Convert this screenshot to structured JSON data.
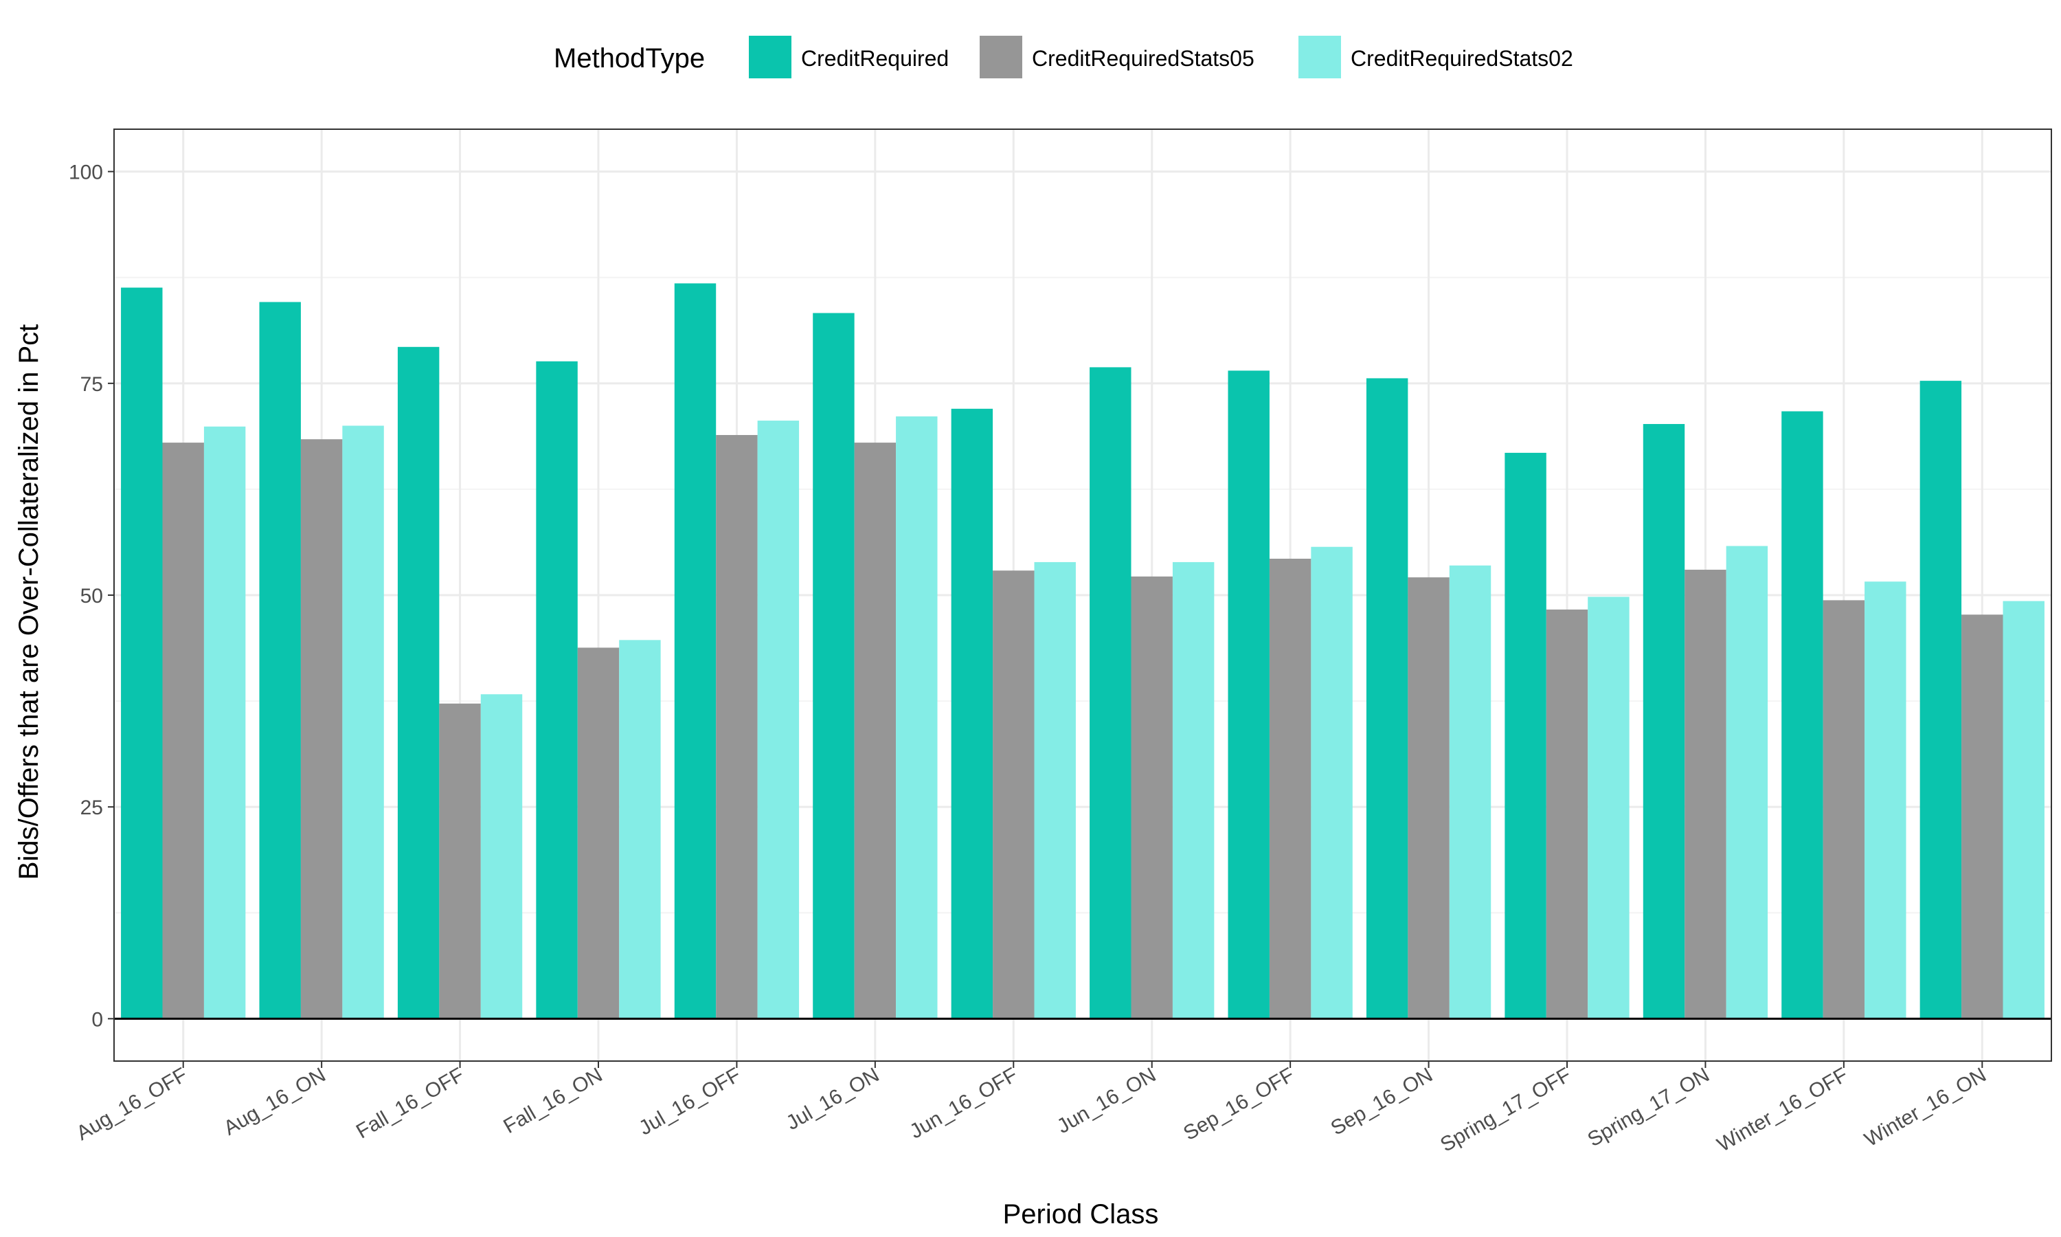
{
  "chart_data": {
    "type": "bar",
    "xlabel": "Period Class",
    "ylabel": "Bids/Offers that are Over-Collateralized in Pct",
    "ylim": [
      -5,
      105
    ],
    "yticks": [
      0,
      25,
      50,
      75,
      100
    ],
    "grid": true,
    "legend": {
      "title": "MethodType",
      "placement": "top"
    },
    "categories": [
      "Aug_16_OFF",
      "Aug_16_ON",
      "Fall_16_OFF",
      "Fall_16_ON",
      "Jul_16_OFF",
      "Jul_16_ON",
      "Jun_16_OFF",
      "Jun_16_ON",
      "Sep_16_OFF",
      "Sep_16_ON",
      "Spring_17_OFF",
      "Spring_17_ON",
      "Winter_16_OFF",
      "Winter_16_ON"
    ],
    "series": [
      {
        "name": "CreditRequired",
        "color": "#0ac4ad",
        "values": [
          86.3,
          84.6,
          79.3,
          77.6,
          86.8,
          83.3,
          72.0,
          76.9,
          76.5,
          75.6,
          66.8,
          70.2,
          71.7,
          75.3
        ]
      },
      {
        "name": "CreditRequiredStats05",
        "color": "#969696",
        "values": [
          68.0,
          68.4,
          37.2,
          43.8,
          68.9,
          68.0,
          52.9,
          52.2,
          54.3,
          52.1,
          48.3,
          53.0,
          49.4,
          47.7
        ]
      },
      {
        "name": "CreditRequiredStats02",
        "color": "#84ede6",
        "values": [
          69.9,
          70.0,
          38.3,
          44.7,
          70.6,
          71.1,
          53.9,
          53.9,
          55.7,
          53.5,
          49.8,
          55.8,
          51.6,
          49.3
        ]
      }
    ]
  }
}
